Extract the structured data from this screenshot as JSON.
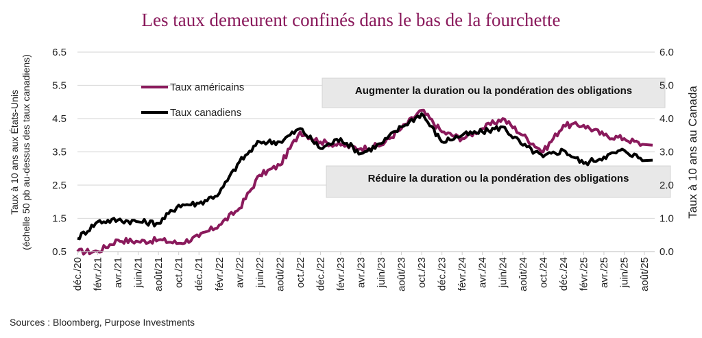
{
  "chart_data": {
    "type": "line",
    "title": "Les taux demeurent confinés dans le bas de la fourchette",
    "ylabel_left": [
      "Taux à 10 ans aux États-Unis",
      "(échelle 50 pb au-dessus des taux canadiens)"
    ],
    "ylabel_right": "Taux à 10 ans au Canada",
    "xlabel": "",
    "ylim_left": [
      0.5,
      6.5
    ],
    "ylim_right": [
      0.0,
      6.0
    ],
    "yticks_left": [
      "6.5",
      "5.5",
      "4.5",
      "3.5",
      "2.5",
      "1.5",
      "0.5"
    ],
    "yticks_right": [
      "6.0",
      "5.0",
      "4.0",
      "3.0",
      "2.0",
      "1.0",
      "0.0"
    ],
    "grid": true,
    "legend_position": "top-left",
    "categories": [
      "déc./20",
      "févr./21",
      "avr./21",
      "juin/21",
      "août/21",
      "oct./21",
      "déc./21",
      "févr./22",
      "avr./22",
      "juin/22",
      "août/22",
      "oct./22",
      "déc./22",
      "févr./23",
      "avr./23",
      "juin/23",
      "août/23",
      "oct./23",
      "déc./23",
      "févr./24",
      "avr./24",
      "juin/24",
      "août/24",
      "oct./24",
      "déc./24",
      "févr./25",
      "avr./25",
      "juin/25",
      "août/25"
    ],
    "series": [
      {
        "name": "Taux américains",
        "color": "#8a1a5c",
        "axis": "left",
        "values": [
          0.5,
          0.5,
          0.85,
          0.8,
          0.85,
          0.75,
          0.95,
          1.3,
          1.8,
          2.8,
          3.1,
          4.1,
          3.8,
          3.7,
          3.6,
          3.7,
          4.2,
          4.75,
          4.1,
          3.9,
          4.2,
          4.5,
          4.0,
          3.5,
          4.3,
          4.3,
          4.0,
          3.9,
          3.7
        ]
      },
      {
        "name": "Taux canadiens",
        "color": "#000000",
        "axis": "right",
        "values": [
          0.4,
          0.9,
          0.95,
          0.9,
          0.85,
          1.4,
          1.45,
          1.75,
          2.7,
          3.3,
          3.3,
          3.7,
          3.1,
          3.4,
          2.95,
          3.25,
          3.75,
          4.15,
          3.3,
          3.5,
          3.6,
          3.75,
          3.2,
          2.85,
          3.05,
          2.65,
          2.85,
          3.05,
          2.75
        ]
      }
    ],
    "annotations": [
      {
        "text": "Augmenter la duration ou la pondération des obligations",
        "y_right": 4.8
      },
      {
        "text": "Réduire la duration ou la pondération des obligations",
        "y_right": 2.2
      }
    ],
    "source": "Sources : Bloomberg, Purpose Investments"
  }
}
